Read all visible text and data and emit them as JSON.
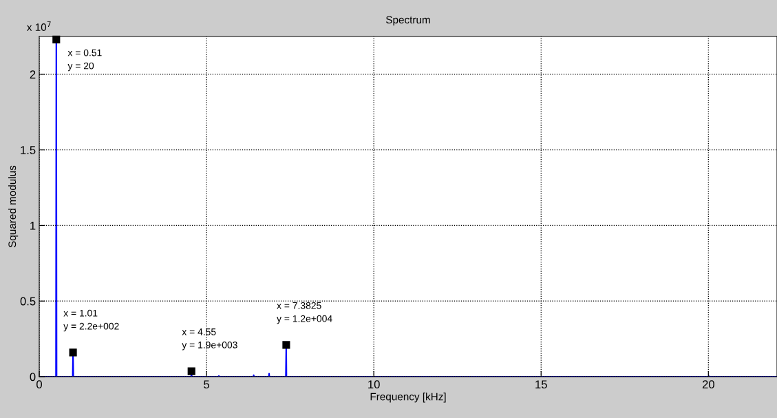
{
  "chart_data": {
    "type": "line",
    "title": "Spectrum",
    "xlabel": "Frequency [kHz]",
    "ylabel": "Squared modulus",
    "x": [
      0,
      0.5,
      0.51,
      0.52,
      1.0,
      1.01,
      1.02,
      4.54,
      4.55,
      4.56,
      5.36,
      5.37,
      5.38,
      6.4,
      6.41,
      6.42,
      6.86,
      6.87,
      6.88,
      7.37,
      7.3825,
      7.39,
      20.0,
      20.01,
      20.02,
      22.05
    ],
    "series": [
      {
        "color": "#0000ff",
        "values": [
          0,
          0,
          2.23,
          0,
          0,
          0.16,
          0,
          0,
          0.036,
          0,
          0,
          0.005,
          0,
          0,
          0.01,
          0,
          0,
          0.02,
          0,
          0,
          0.21,
          0,
          0,
          0.005,
          0,
          0
        ]
      }
    ],
    "xlim": [
      0,
      22.05
    ],
    "xticks": [
      0,
      5,
      10,
      15,
      20
    ],
    "ylim": [
      0,
      2.25
    ],
    "yticks": [
      0,
      0.5,
      1,
      1.5,
      2
    ],
    "grid": true,
    "marker": "none",
    "line_style": "solid",
    "annotations": [
      "x 10$^{7}$",
      {
        "text": "x = 0.51\ny = 20",
        "x": 0.51,
        "y": 2.23
      },
      {
        "text": "x = 1.01\ny = 2.2e+002",
        "x": 1.01,
        "y": 0.16
      },
      {
        "text": "x = 4.55\ny = 1.9e+003",
        "x": 4.55,
        "y": 0.036
      },
      {
        "text": "x = 7.3825\ny = 1.2e+004",
        "x": 7.3825,
        "y": 0.21
      }
    ]
  }
}
